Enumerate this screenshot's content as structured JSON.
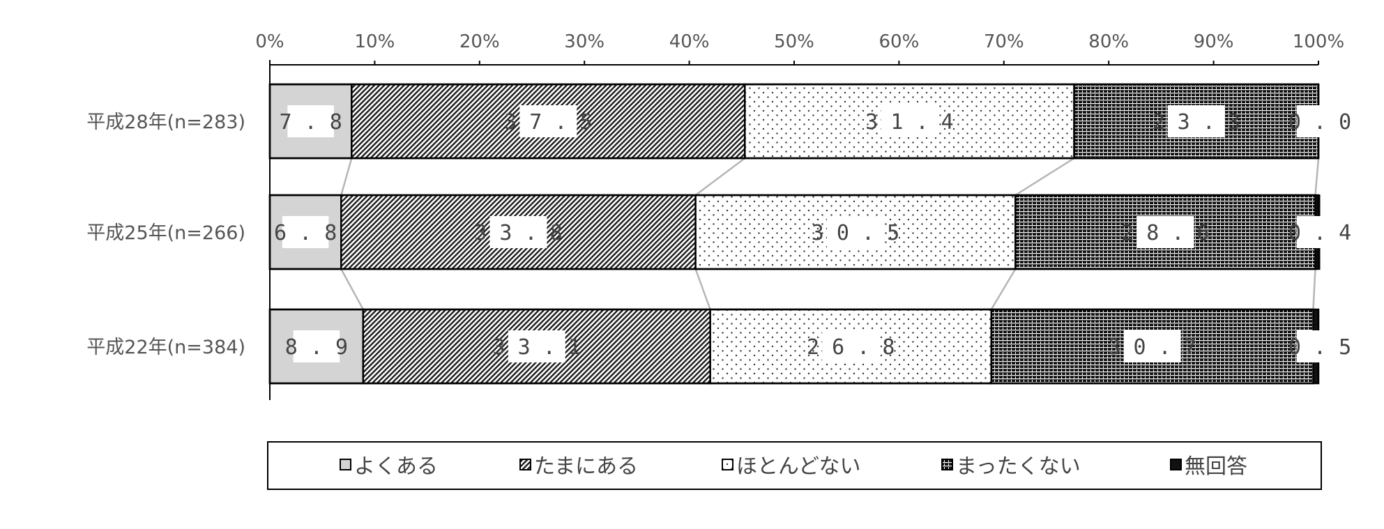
{
  "chart_data": {
    "type": "bar",
    "orientation": "horizontal",
    "stacked": true,
    "title": "",
    "xlabel": "",
    "ylabel": "",
    "xlim": [
      0,
      100
    ],
    "x_ticks": [
      "0%",
      "10%",
      "20%",
      "30%",
      "40%",
      "50%",
      "60%",
      "70%",
      "80%",
      "90%",
      "100%"
    ],
    "categories": [
      "平成28年(n=283)",
      "平成25年(n=266)",
      "平成22年(n=384)"
    ],
    "series": [
      {
        "name": "よくある",
        "values": [
          7.8,
          6.8,
          8.9
        ],
        "labels": [
          "7.8",
          "6.8",
          "8.9"
        ],
        "pattern": "solid-gray",
        "color": "#d4d4d4"
      },
      {
        "name": "たまにある",
        "values": [
          37.5,
          33.8,
          33.1
        ],
        "labels": [
          "37.5",
          "33.8",
          "33.1"
        ],
        "pattern": "diagonal-hatch",
        "color": "#222222"
      },
      {
        "name": "ほとんどない",
        "values": [
          31.4,
          30.5,
          26.8
        ],
        "labels": [
          "31.4",
          "30.5",
          "26.8"
        ],
        "pattern": "dots",
        "color": "#ffffff"
      },
      {
        "name": "まったくない",
        "values": [
          23.3,
          28.6,
          30.7
        ],
        "labels": [
          "23.3",
          "28.6",
          "30.7"
        ],
        "pattern": "horizontal-stripes",
        "color": "#111111"
      },
      {
        "name": "無回答",
        "values": [
          0.0,
          0.4,
          0.5
        ],
        "labels": [
          "0.0",
          "0.4",
          "0.5"
        ],
        "pattern": "solid-black",
        "color": "#111111"
      }
    ],
    "connector_lines": true,
    "grid": false,
    "legend_position": "bottom"
  }
}
